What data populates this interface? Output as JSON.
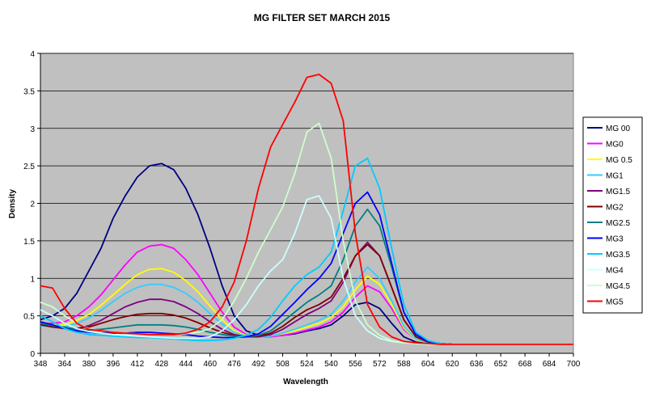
{
  "chart_data": {
    "type": "line",
    "title": "MG FILTER SET MARCH 2015",
    "xlabel": "Wavelength",
    "ylabel": "Density",
    "xlim": [
      348,
      700
    ],
    "ylim": [
      0,
      4
    ],
    "y_ticks": [
      "0",
      "0.5",
      "1",
      "1.5",
      "2",
      "2.5",
      "3",
      "3.5",
      "4"
    ],
    "x_ticks": [
      "348",
      "364",
      "380",
      "396",
      "412",
      "428",
      "444",
      "460",
      "476",
      "492",
      "508",
      "524",
      "540",
      "556",
      "572",
      "588",
      "604",
      "620",
      "636",
      "652",
      "668",
      "684",
      "700"
    ],
    "grid": "horizontal",
    "plot_background": "#c0c0c0",
    "legend_position": "right",
    "x": [
      348,
      356,
      364,
      372,
      380,
      388,
      396,
      404,
      412,
      420,
      428,
      436,
      444,
      452,
      460,
      468,
      476,
      484,
      492,
      500,
      508,
      516,
      524,
      532,
      540,
      548,
      556,
      564,
      572,
      580,
      588,
      596,
      604,
      612,
      620,
      636,
      652,
      668,
      684,
      700
    ],
    "series": [
      {
        "name": "MG 00",
        "color": "#000080",
        "values": [
          0.45,
          0.5,
          0.6,
          0.8,
          1.1,
          1.4,
          1.8,
          2.1,
          2.35,
          2.5,
          2.53,
          2.45,
          2.2,
          1.85,
          1.4,
          0.9,
          0.5,
          0.3,
          0.24,
          0.23,
          0.24,
          0.26,
          0.3,
          0.33,
          0.38,
          0.5,
          0.65,
          0.68,
          0.6,
          0.4,
          0.22,
          0.15,
          0.13,
          0.12,
          0.12,
          0.12,
          0.12,
          0.12,
          0.12,
          0.12
        ]
      },
      {
        "name": "MG0",
        "color": "#ff00ff",
        "values": [
          0.4,
          0.4,
          0.42,
          0.5,
          0.62,
          0.78,
          0.98,
          1.18,
          1.35,
          1.43,
          1.45,
          1.4,
          1.25,
          1.05,
          0.8,
          0.55,
          0.35,
          0.25,
          0.22,
          0.22,
          0.24,
          0.27,
          0.31,
          0.35,
          0.42,
          0.55,
          0.75,
          0.9,
          0.82,
          0.6,
          0.32,
          0.18,
          0.14,
          0.13,
          0.12,
          0.12,
          0.12,
          0.12,
          0.12,
          0.12
        ]
      },
      {
        "name": "MG 0.5",
        "color": "#ffff00",
        "values": [
          0.38,
          0.37,
          0.38,
          0.44,
          0.52,
          0.64,
          0.78,
          0.92,
          1.05,
          1.12,
          1.13,
          1.08,
          0.97,
          0.82,
          0.63,
          0.45,
          0.3,
          0.24,
          0.22,
          0.23,
          0.26,
          0.3,
          0.35,
          0.4,
          0.48,
          0.62,
          0.85,
          1.03,
          0.92,
          0.65,
          0.34,
          0.18,
          0.14,
          0.13,
          0.12,
          0.12,
          0.12,
          0.12,
          0.12,
          0.12
        ]
      },
      {
        "name": "MG1",
        "color": "#33ccff",
        "values": [
          0.37,
          0.35,
          0.35,
          0.4,
          0.47,
          0.57,
          0.69,
          0.8,
          0.88,
          0.92,
          0.92,
          0.88,
          0.8,
          0.68,
          0.53,
          0.39,
          0.28,
          0.23,
          0.22,
          0.23,
          0.27,
          0.32,
          0.38,
          0.44,
          0.52,
          0.7,
          0.95,
          1.15,
          1.0,
          0.7,
          0.36,
          0.19,
          0.14,
          0.13,
          0.12,
          0.12,
          0.12,
          0.12,
          0.12,
          0.12
        ]
      },
      {
        "name": "MG1.5",
        "color": "#800080",
        "values": [
          0.4,
          0.37,
          0.34,
          0.33,
          0.37,
          0.44,
          0.53,
          0.62,
          0.68,
          0.72,
          0.72,
          0.69,
          0.62,
          0.53,
          0.42,
          0.32,
          0.25,
          0.22,
          0.22,
          0.25,
          0.32,
          0.42,
          0.52,
          0.6,
          0.7,
          0.95,
          1.3,
          1.48,
          1.3,
          0.88,
          0.45,
          0.22,
          0.15,
          0.13,
          0.12,
          0.12,
          0.12,
          0.12,
          0.12,
          0.12
        ]
      },
      {
        "name": "MG2",
        "color": "#800000",
        "values": [
          0.38,
          0.35,
          0.33,
          0.33,
          0.35,
          0.4,
          0.45,
          0.49,
          0.52,
          0.53,
          0.53,
          0.51,
          0.47,
          0.41,
          0.34,
          0.28,
          0.24,
          0.22,
          0.23,
          0.27,
          0.36,
          0.48,
          0.58,
          0.65,
          0.75,
          1.0,
          1.3,
          1.45,
          1.3,
          0.88,
          0.45,
          0.22,
          0.15,
          0.13,
          0.12,
          0.12,
          0.12,
          0.12,
          0.12,
          0.12
        ]
      },
      {
        "name": "MG2.5",
        "color": "#008080",
        "values": [
          0.4,
          0.37,
          0.35,
          0.32,
          0.31,
          0.32,
          0.34,
          0.36,
          0.38,
          0.38,
          0.38,
          0.37,
          0.35,
          0.32,
          0.28,
          0.25,
          0.23,
          0.22,
          0.24,
          0.3,
          0.42,
          0.55,
          0.68,
          0.78,
          0.9,
          1.25,
          1.7,
          1.92,
          1.7,
          1.15,
          0.55,
          0.25,
          0.16,
          0.13,
          0.12,
          0.12,
          0.12,
          0.12,
          0.12,
          0.12
        ]
      },
      {
        "name": "MG3",
        "color": "#0000ff",
        "values": [
          0.42,
          0.38,
          0.33,
          0.3,
          0.28,
          0.27,
          0.27,
          0.27,
          0.28,
          0.28,
          0.27,
          0.26,
          0.25,
          0.23,
          0.22,
          0.21,
          0.21,
          0.22,
          0.26,
          0.36,
          0.52,
          0.68,
          0.85,
          1.0,
          1.2,
          1.6,
          2.0,
          2.15,
          1.85,
          1.2,
          0.55,
          0.25,
          0.16,
          0.13,
          0.12,
          0.12,
          0.12,
          0.12,
          0.12,
          0.12
        ]
      },
      {
        "name": "MG3.5",
        "color": "#00ccff",
        "values": [
          0.5,
          0.42,
          0.33,
          0.28,
          0.25,
          0.24,
          0.23,
          0.22,
          0.21,
          0.21,
          0.2,
          0.19,
          0.18,
          0.17,
          0.17,
          0.18,
          0.2,
          0.24,
          0.32,
          0.48,
          0.7,
          0.9,
          1.05,
          1.15,
          1.35,
          1.9,
          2.5,
          2.6,
          2.2,
          1.4,
          0.65,
          0.28,
          0.17,
          0.13,
          0.12,
          0.12,
          0.12,
          0.12,
          0.12,
          0.12
        ]
      },
      {
        "name": "MG4",
        "color": "#ccffff",
        "values": [
          0.58,
          0.5,
          0.4,
          0.33,
          0.29,
          0.27,
          0.25,
          0.24,
          0.23,
          0.22,
          0.21,
          0.2,
          0.2,
          0.2,
          0.22,
          0.3,
          0.45,
          0.65,
          0.9,
          1.1,
          1.25,
          1.6,
          2.05,
          2.1,
          1.8,
          1.0,
          0.5,
          0.3,
          0.2,
          0.16,
          0.14,
          0.13,
          0.12,
          0.12,
          0.12,
          0.12,
          0.12,
          0.12,
          0.12,
          0.12
        ]
      },
      {
        "name": "MG4.5",
        "color": "#ccffcc",
        "values": [
          0.68,
          0.62,
          0.5,
          0.4,
          0.33,
          0.3,
          0.28,
          0.27,
          0.26,
          0.25,
          0.25,
          0.25,
          0.26,
          0.28,
          0.33,
          0.45,
          0.7,
          1.0,
          1.35,
          1.65,
          1.95,
          2.4,
          2.95,
          3.07,
          2.6,
          1.5,
          0.7,
          0.38,
          0.24,
          0.17,
          0.14,
          0.13,
          0.12,
          0.12,
          0.12,
          0.12,
          0.12,
          0.12,
          0.12,
          0.12
        ]
      },
      {
        "name": "MG5",
        "color": "#ff0000",
        "values": [
          0.9,
          0.87,
          0.6,
          0.4,
          0.32,
          0.3,
          0.28,
          0.27,
          0.26,
          0.25,
          0.25,
          0.25,
          0.27,
          0.32,
          0.42,
          0.62,
          0.95,
          1.5,
          2.2,
          2.75,
          3.05,
          3.35,
          3.68,
          3.72,
          3.6,
          3.1,
          1.6,
          0.65,
          0.35,
          0.22,
          0.16,
          0.14,
          0.13,
          0.12,
          0.12,
          0.12,
          0.12,
          0.12,
          0.12,
          0.12
        ]
      }
    ]
  }
}
